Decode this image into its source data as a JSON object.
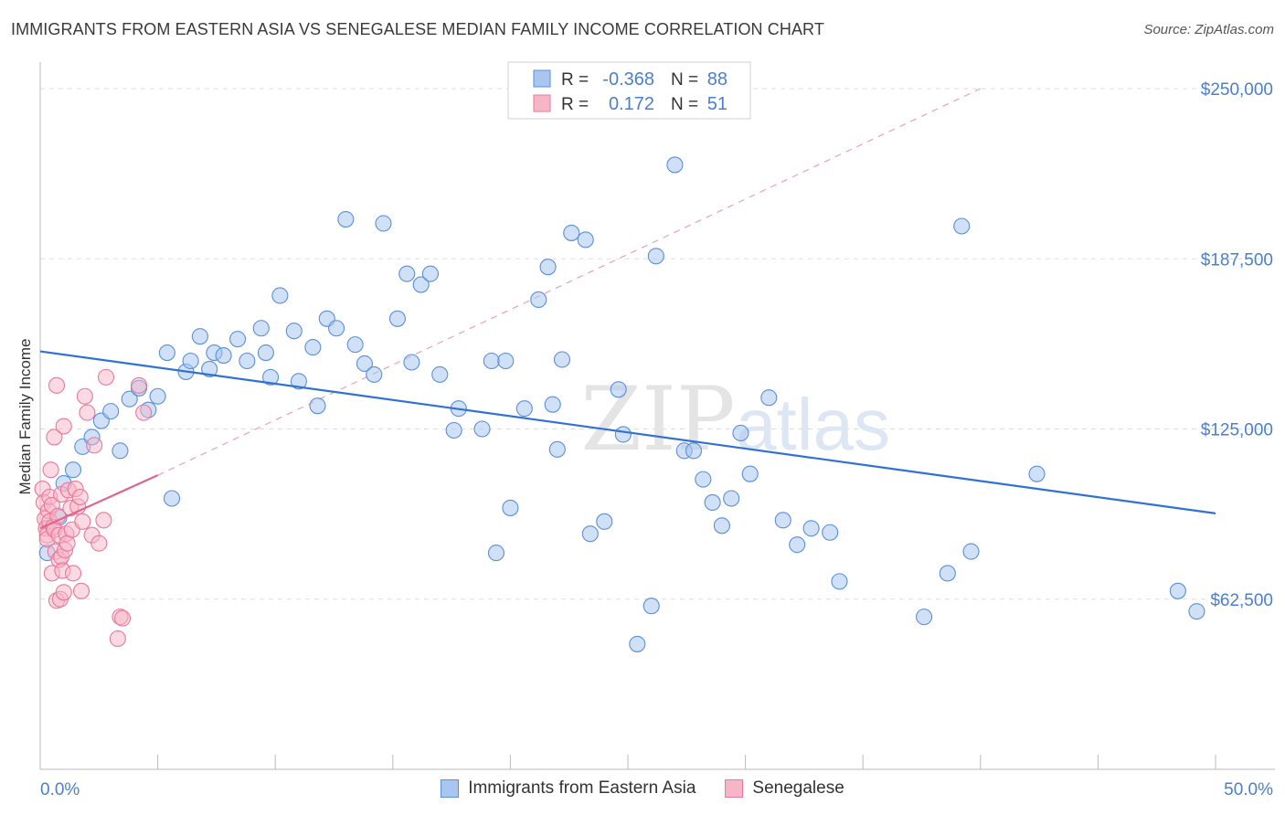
{
  "title": "IMMIGRANTS FROM EASTERN ASIA VS SENEGALESE MEDIAN FAMILY INCOME CORRELATION CHART",
  "source": "Source: ZipAtlas.com",
  "watermark": "ZIPatlas",
  "colors": {
    "blue_fill": "#a8c6f0",
    "blue_stroke": "#5b8fd6",
    "blue_line": "#2f72d4",
    "pink_fill": "#f7b6c8",
    "pink_stroke": "#e8789c",
    "pink_line": "#e0658e",
    "axis_text": "#4a7fcf",
    "grid": "#dddddd"
  },
  "legend_top": {
    "rows": [
      {
        "r_label": "R =",
        "r_value": "-0.368",
        "n_label": "N =",
        "n_value": "88"
      },
      {
        "r_label": "R =",
        "r_value": "0.172",
        "n_label": "N =",
        "n_value": "51"
      }
    ]
  },
  "legend_bottom": {
    "items": [
      "Immigrants from Eastern Asia",
      "Senegalese"
    ]
  },
  "chart_data": {
    "type": "scatter",
    "title": "IMMIGRANTS FROM EASTERN ASIA VS SENEGALESE MEDIAN FAMILY INCOME CORRELATION CHART",
    "xlabel": "",
    "ylabel": "Median Family Income",
    "xlim": [
      0,
      50
    ],
    "ylim": [
      0,
      262500
    ],
    "x_tick_labels": [
      "0.0%",
      "50.0%"
    ],
    "y_tick_labels": [
      "$62,500",
      "$125,000",
      "$187,500",
      "$250,000"
    ],
    "y_ticks": [
      62500,
      125000,
      187500,
      250000
    ],
    "grid": true,
    "legend_position": "top-center",
    "series": [
      {
        "name": "Immigrants from Eastern Asia",
        "R": -0.368,
        "N": 88,
        "trend": {
          "x": [
            0,
            50
          ],
          "y": [
            153500,
            94000
          ]
        },
        "points": [
          [
            0.3,
            79500
          ],
          [
            0.8,
            92500
          ],
          [
            1.0,
            105000
          ],
          [
            1.4,
            110000
          ],
          [
            1.8,
            118500
          ],
          [
            2.2,
            122000
          ],
          [
            2.6,
            128000
          ],
          [
            3.0,
            131500
          ],
          [
            3.4,
            117000
          ],
          [
            3.8,
            136000
          ],
          [
            4.2,
            140000
          ],
          [
            4.6,
            132000
          ],
          [
            5.0,
            137000
          ],
          [
            5.4,
            153000
          ],
          [
            5.6,
            99500
          ],
          [
            6.2,
            146000
          ],
          [
            6.4,
            150000
          ],
          [
            6.8,
            159000
          ],
          [
            7.2,
            147000
          ],
          [
            7.4,
            153000
          ],
          [
            7.8,
            152000
          ],
          [
            8.4,
            158000
          ],
          [
            8.8,
            150000
          ],
          [
            9.4,
            162000
          ],
          [
            9.6,
            153000
          ],
          [
            9.8,
            144000
          ],
          [
            10.2,
            174000
          ],
          [
            10.8,
            161000
          ],
          [
            11.0,
            142500
          ],
          [
            11.6,
            155000
          ],
          [
            11.8,
            133500
          ],
          [
            12.2,
            165500
          ],
          [
            12.6,
            162000
          ],
          [
            13.0,
            202000
          ],
          [
            13.4,
            156000
          ],
          [
            13.8,
            149000
          ],
          [
            14.2,
            145000
          ],
          [
            14.6,
            200500
          ],
          [
            15.2,
            165500
          ],
          [
            15.6,
            182000
          ],
          [
            15.8,
            149500
          ],
          [
            16.2,
            178000
          ],
          [
            16.6,
            182000
          ],
          [
            17.0,
            145000
          ],
          [
            17.6,
            124500
          ],
          [
            17.8,
            132500
          ],
          [
            18.8,
            125000
          ],
          [
            19.2,
            150000
          ],
          [
            19.4,
            79500
          ],
          [
            19.8,
            150000
          ],
          [
            20.0,
            96000
          ],
          [
            20.6,
            132500
          ],
          [
            21.2,
            172500
          ],
          [
            21.6,
            184500
          ],
          [
            21.8,
            134000
          ],
          [
            22.0,
            117500
          ],
          [
            22.2,
            150500
          ],
          [
            22.6,
            197000
          ],
          [
            23.2,
            194500
          ],
          [
            23.4,
            86500
          ],
          [
            24.0,
            91000
          ],
          [
            24.6,
            139500
          ],
          [
            24.8,
            123000
          ],
          [
            25.4,
            46000
          ],
          [
            26.0,
            60000
          ],
          [
            26.2,
            188500
          ],
          [
            27.0,
            222000
          ],
          [
            27.4,
            117000
          ],
          [
            27.8,
            117000
          ],
          [
            28.2,
            106500
          ],
          [
            28.6,
            98000
          ],
          [
            29.0,
            89500
          ],
          [
            29.4,
            99500
          ],
          [
            29.8,
            123500
          ],
          [
            30.2,
            108500
          ],
          [
            31.0,
            136500
          ],
          [
            31.6,
            91500
          ],
          [
            32.2,
            82500
          ],
          [
            32.8,
            88500
          ],
          [
            33.6,
            87000
          ],
          [
            34.0,
            69000
          ],
          [
            37.6,
            56000
          ],
          [
            38.6,
            72000
          ],
          [
            39.2,
            199500
          ],
          [
            39.6,
            80000
          ],
          [
            42.4,
            108500
          ],
          [
            48.4,
            65500
          ],
          [
            49.2,
            58000
          ]
        ]
      },
      {
        "name": "Senegalese",
        "R": 0.172,
        "N": 51,
        "trend_solid": {
          "x": [
            0,
            5
          ],
          "y": [
            88500,
            108000
          ]
        },
        "trend_dashed": {
          "x": [
            5,
            40
          ],
          "y": [
            108000,
            250000
          ]
        },
        "points": [
          [
            0.1,
            103000
          ],
          [
            0.15,
            98000
          ],
          [
            0.2,
            92000
          ],
          [
            0.25,
            88500
          ],
          [
            0.3,
            86000
          ],
          [
            0.3,
            84500
          ],
          [
            0.35,
            95000
          ],
          [
            0.4,
            100000
          ],
          [
            0.4,
            91000
          ],
          [
            0.45,
            110000
          ],
          [
            0.5,
            97000
          ],
          [
            0.5,
            72000
          ],
          [
            0.55,
            89000
          ],
          [
            0.6,
            122000
          ],
          [
            0.6,
            88000
          ],
          [
            0.65,
            80000
          ],
          [
            0.7,
            62000
          ],
          [
            0.7,
            141000
          ],
          [
            0.75,
            93000
          ],
          [
            0.8,
            77000
          ],
          [
            0.8,
            86000
          ],
          [
            0.85,
            62500
          ],
          [
            0.9,
            78000
          ],
          [
            0.9,
            101000
          ],
          [
            0.95,
            73000
          ],
          [
            1.0,
            126000
          ],
          [
            1.0,
            65000
          ],
          [
            1.05,
            80500
          ],
          [
            1.1,
            86500
          ],
          [
            1.15,
            83000
          ],
          [
            1.2,
            102500
          ],
          [
            1.3,
            96000
          ],
          [
            1.35,
            88000
          ],
          [
            1.4,
            72000
          ],
          [
            1.5,
            103000
          ],
          [
            1.6,
            96500
          ],
          [
            1.7,
            100000
          ],
          [
            1.75,
            65500
          ],
          [
            1.8,
            91000
          ],
          [
            1.9,
            137000
          ],
          [
            2.0,
            131000
          ],
          [
            2.2,
            86000
          ],
          [
            2.3,
            119000
          ],
          [
            2.5,
            83000
          ],
          [
            2.7,
            91500
          ],
          [
            2.8,
            144000
          ],
          [
            3.3,
            48000
          ],
          [
            3.4,
            56000
          ],
          [
            3.5,
            55500
          ],
          [
            4.2,
            141000
          ],
          [
            4.4,
            131000
          ]
        ]
      }
    ]
  }
}
